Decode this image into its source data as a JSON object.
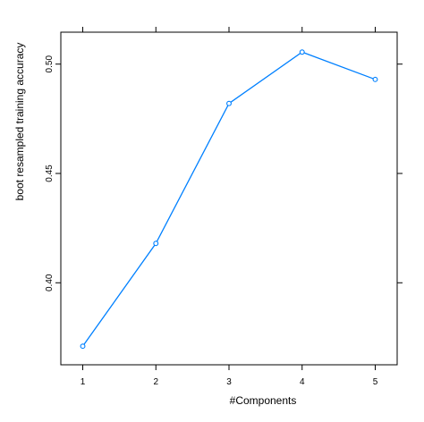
{
  "chart_data": {
    "type": "line",
    "title": "",
    "xlabel": "#Components",
    "ylabel": "boot resampled training accuracy",
    "x": [
      1,
      2,
      3,
      4,
      5
    ],
    "series": [
      {
        "values": [
          0.371,
          0.418,
          0.482,
          0.5055,
          0.493
        ]
      }
    ],
    "xticks": [
      1,
      2,
      3,
      4,
      5
    ],
    "xtick_labels": [
      "1",
      "2",
      "3",
      "4",
      "5"
    ],
    "yticks": [
      0.4,
      0.45,
      0.5
    ],
    "ytick_labels": [
      "0.40",
      "0.45",
      "0.50"
    ],
    "xlim": [
      0.7,
      5.3
    ],
    "ylim": [
      0.3625,
      0.5146
    ],
    "grid": false,
    "legend": "none",
    "colors": {
      "line": "#0080ff",
      "frame": "#000000"
    },
    "marker": "open-circle"
  }
}
